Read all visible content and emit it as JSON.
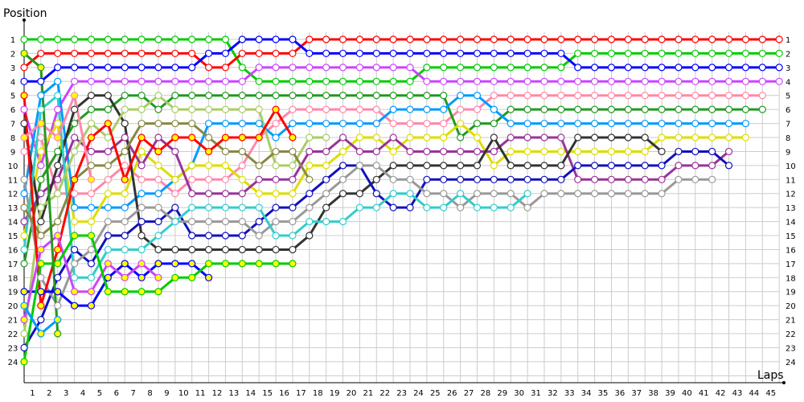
{
  "chart_data": {
    "type": "line",
    "title": "",
    "xlabel": "Laps",
    "ylabel": "Position",
    "xlim": [
      0,
      45
    ],
    "ylim": [
      1,
      24
    ],
    "y_inverted": true,
    "grid": true,
    "x_ticks": [
      1,
      2,
      3,
      4,
      5,
      6,
      7,
      8,
      9,
      10,
      11,
      12,
      13,
      14,
      15,
      16,
      17,
      18,
      19,
      20,
      21,
      22,
      23,
      24,
      25,
      26,
      27,
      28,
      29,
      30,
      31,
      32,
      33,
      34,
      35,
      36,
      37,
      38,
      39,
      40,
      41,
      42,
      43,
      44,
      45
    ],
    "y_ticks": [
      1,
      2,
      3,
      4,
      5,
      6,
      7,
      8,
      9,
      10,
      11,
      12,
      13,
      14,
      15,
      16,
      17,
      18,
      19,
      20,
      21,
      22,
      23,
      24
    ],
    "series": [
      {
        "color": "#00cc00",
        "marker_fill": "#ffffff",
        "start_lap": 0,
        "positions": [
          1,
          1,
          1,
          1,
          1,
          1,
          1,
          1,
          1,
          1,
          1,
          1,
          1,
          3,
          4,
          4,
          4,
          4,
          4,
          4,
          4,
          4,
          4,
          4,
          3,
          3,
          3,
          3,
          3,
          3,
          3,
          3,
          3,
          2,
          2,
          2,
          2,
          2,
          2,
          2,
          2,
          2,
          2,
          2,
          2,
          2
        ]
      },
      {
        "color": "#ff0000",
        "marker_fill": "#ffffff",
        "start_lap": 0,
        "positions": [
          3,
          2,
          2,
          2,
          2,
          2,
          2,
          2,
          2,
          2,
          2,
          3,
          3,
          2,
          2,
          2,
          2,
          1,
          1,
          1,
          1,
          1,
          1,
          1,
          1,
          1,
          1,
          1,
          1,
          1,
          1,
          1,
          1,
          1,
          1,
          1,
          1,
          1,
          1,
          1,
          1,
          1,
          1,
          1,
          1,
          1
        ]
      },
      {
        "color": "#0000ff",
        "marker_fill": "#ffffff",
        "start_lap": 0,
        "positions": [
          4,
          4,
          3,
          3,
          3,
          3,
          3,
          3,
          3,
          3,
          3,
          2,
          2,
          1,
          1,
          1,
          1,
          2,
          2,
          2,
          2,
          2,
          2,
          2,
          2,
          2,
          2,
          2,
          2,
          2,
          2,
          2,
          2,
          3,
          3,
          3,
          3,
          3,
          3,
          3,
          3,
          3,
          3,
          3,
          3,
          3
        ]
      },
      {
        "color": "#cc44ff",
        "marker_fill": "#ffffff",
        "start_lap": 0,
        "positions": [
          6,
          10,
          6,
          4,
          4,
          4,
          4,
          4,
          4,
          4,
          4,
          4,
          4,
          4,
          3,
          3,
          3,
          3,
          3,
          3,
          3,
          3,
          3,
          3,
          4,
          4,
          4,
          4,
          4,
          4,
          4,
          4,
          4,
          4,
          4,
          4,
          4,
          4,
          4,
          4,
          4,
          4,
          4,
          4,
          4,
          4
        ]
      },
      {
        "color": "#ff88aa",
        "marker_fill": "#ffffff",
        "start_lap": 0,
        "positions": [
          9,
          8,
          12,
          12,
          12,
          11,
          10,
          11,
          11,
          12,
          11,
          11,
          11,
          10,
          8,
          7,
          6,
          6,
          6,
          6,
          6,
          6,
          7,
          7,
          7,
          7,
          6,
          6,
          5,
          5,
          5,
          5,
          5,
          5,
          5,
          5,
          5,
          5,
          5,
          5,
          5,
          5,
          5,
          5,
          5
        ]
      },
      {
        "color": "#229922",
        "marker_fill": "#ffffff",
        "start_lap": 0,
        "positions": [
          17,
          11,
          9,
          7,
          6,
          6,
          5,
          5,
          6,
          5,
          5,
          5,
          5,
          5,
          5,
          5,
          5,
          5,
          5,
          5,
          5,
          5,
          5,
          5,
          5,
          5,
          8,
          7,
          7,
          6,
          6,
          6,
          6,
          6,
          6,
          6,
          6,
          6,
          6,
          6,
          6,
          6,
          6,
          6,
          6
        ]
      },
      {
        "color": "#0099ff",
        "marker_fill": "#ffffff",
        "start_lap": 0,
        "positions": [
          12,
          5,
          4,
          13,
          13,
          13,
          13,
          12,
          12,
          11,
          10,
          7,
          7,
          7,
          7,
          8,
          7,
          7,
          7,
          7,
          7,
          7,
          6,
          6,
          6,
          6,
          5,
          5,
          6,
          7,
          7,
          7,
          7,
          7,
          7,
          7,
          7,
          7,
          7,
          7,
          7,
          7,
          7,
          7
        ]
      },
      {
        "color": "#dddd00",
        "marker_fill": "#ffffff",
        "start_lap": 0,
        "positions": [
          15,
          9,
          7,
          14,
          14,
          12,
          12,
          9,
          10,
          11,
          10,
          10,
          10,
          11,
          12,
          12,
          12,
          10,
          10,
          9,
          8,
          8,
          9,
          8,
          8,
          8,
          7,
          8,
          10,
          9,
          9,
          9,
          9,
          9,
          9,
          9,
          9,
          9,
          8,
          8,
          8,
          8,
          8,
          8
        ]
      },
      {
        "color": "#993399",
        "marker_fill": "#ffffff",
        "start_lap": 0,
        "positions": [
          14,
          12,
          11,
          8,
          9,
          9,
          8,
          10,
          8,
          9,
          12,
          12,
          12,
          12,
          11,
          11,
          11,
          9,
          9,
          8,
          9,
          9,
          8,
          9,
          9,
          9,
          9,
          9,
          9,
          8,
          8,
          8,
          8,
          11,
          11,
          11,
          11,
          11,
          11,
          10,
          10,
          10,
          9
        ]
      },
      {
        "color": "#333333",
        "marker_fill": "#ffffff",
        "start_lap": 0,
        "positions": [
          7,
          14,
          10,
          6,
          5,
          5,
          7,
          15,
          16,
          16,
          16,
          16,
          16,
          16,
          16,
          16,
          16,
          15,
          13,
          12,
          12,
          11,
          10,
          10,
          10,
          10,
          10,
          10,
          8,
          10,
          10,
          10,
          10,
          8,
          8,
          8,
          8,
          8,
          9
        ]
      },
      {
        "color": "#1111bb",
        "marker_fill": "#ffffff",
        "start_lap": 0,
        "positions": [
          23,
          21,
          18,
          16,
          17,
          15,
          15,
          14,
          14,
          13,
          15,
          15,
          15,
          15,
          14,
          13,
          13,
          12,
          11,
          10,
          10,
          12,
          13,
          13,
          11,
          11,
          11,
          11,
          11,
          11,
          11,
          11,
          11,
          10,
          10,
          10,
          10,
          10,
          10,
          9,
          9,
          9,
          10
        ]
      },
      {
        "color": "#999999",
        "marker_fill": "#ffffff",
        "start_lap": 0,
        "positions": [
          11,
          18,
          20,
          17,
          16,
          14,
          14,
          13,
          13,
          14,
          14,
          14,
          14,
          14,
          15,
          14,
          14,
          13,
          12,
          11,
          10,
          10,
          11,
          11,
          12,
          12,
          13,
          12,
          12,
          12,
          13,
          12,
          12,
          12,
          12,
          12,
          12,
          12,
          12,
          11,
          11,
          11
        ]
      },
      {
        "color": "#33cccc",
        "marker_fill": "#ffffff",
        "start_lap": 0,
        "positions": [
          16,
          6,
          5,
          18,
          18,
          16,
          16,
          16,
          15,
          14,
          13,
          13,
          13,
          13,
          13,
          15,
          15,
          14,
          14,
          14,
          13,
          13,
          12,
          12,
          13,
          13,
          12,
          13,
          13,
          13,
          12
        ]
      },
      {
        "color": "#aacc66",
        "marker_fill": "#ffffff",
        "start_lap": 0,
        "positions": [
          22,
          13,
          12,
          9,
          7,
          8,
          6,
          6,
          5,
          6,
          6,
          6,
          6,
          6,
          6,
          10,
          10,
          8,
          8
        ]
      },
      {
        "color": "#888844",
        "marker_fill": "#ffffff",
        "start_lap": 0,
        "positions": [
          13,
          15,
          14,
          11,
          10,
          10,
          9,
          7,
          7,
          7,
          7,
          8,
          9,
          9,
          10,
          9,
          9,
          11
        ]
      },
      {
        "color": "#ff0000",
        "marker_fill": "#ffff00",
        "start_lap": 0,
        "positions": [
          5,
          20,
          16,
          11,
          8,
          7,
          11,
          8,
          9,
          8,
          8,
          9,
          8,
          8,
          8,
          6,
          8
        ]
      },
      {
        "color": "#ff88aa",
        "marker_fill": "#ffff00",
        "start_lap": 0,
        "positions": [
          8,
          7,
          8,
          5,
          11
        ]
      },
      {
        "color": "#0000ff",
        "marker_fill": "#ffff00",
        "start_lap": 0,
        "positions": [
          19,
          19,
          19,
          20,
          20,
          18,
          17,
          18,
          17,
          17,
          17,
          18
        ]
      },
      {
        "color": "#cc44ff",
        "marker_fill": "#ffff00",
        "start_lap": 0,
        "positions": [
          21,
          16,
          15,
          19,
          19,
          17,
          18,
          17,
          18
        ]
      },
      {
        "color": "#00cc00",
        "marker_fill": "#ffff00",
        "start_lap": 0,
        "positions": [
          24,
          17,
          17,
          15,
          15,
          19,
          19,
          19,
          19,
          18,
          18,
          17,
          17,
          17,
          17,
          17,
          17
        ]
      },
      {
        "color": "#0099ff",
        "marker_fill": "#ffff00",
        "start_lap": 0,
        "positions": [
          20,
          22,
          21
        ]
      },
      {
        "color": "#229922",
        "marker_fill": "#ffff00",
        "start_lap": 0,
        "positions": [
          2,
          3,
          22
        ]
      }
    ]
  }
}
